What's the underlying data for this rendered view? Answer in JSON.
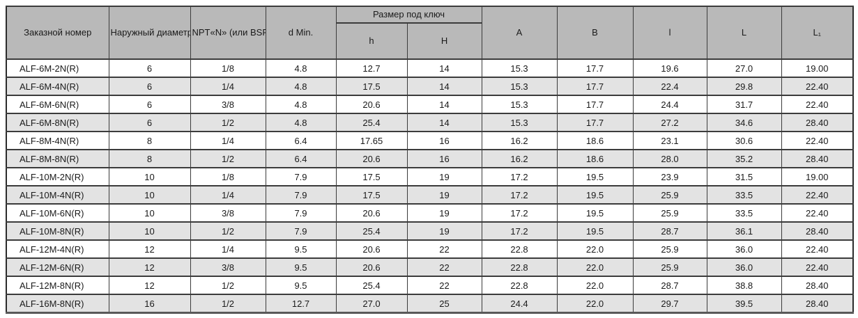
{
  "colors": {
    "header_bg": "#b9b9b9",
    "row_alt_bg": "#e3e3e3",
    "row_bg": "#ffffff",
    "border": "#3b3b3b"
  },
  "table": {
    "headers": {
      "order_number": "Заказной номер",
      "outer_diameter": "Наружный\nдиаметр\nтрубы D",
      "thread": "NPT«N»\n(или\nBSPT«R»)",
      "d_min": "d Min.",
      "wrench_size_group": "Размер под ключ",
      "h_small": "h",
      "h_big": "H",
      "a": "A",
      "b": "B",
      "l_small": "l",
      "l_big": "L",
      "l1": "L₁"
    },
    "column_keys": [
      "order_number",
      "outer_diameter",
      "thread",
      "d_min",
      "h_small",
      "h_big",
      "a",
      "b",
      "l_small",
      "l_big",
      "l1"
    ],
    "rows": [
      [
        "ALF-6M-2N(R)",
        "6",
        "1/8",
        "4.8",
        "12.7",
        "14",
        "15.3",
        "17.7",
        "19.6",
        "27.0",
        "19.00"
      ],
      [
        "ALF-6M-4N(R)",
        "6",
        "1/4",
        "4.8",
        "17.5",
        "14",
        "15.3",
        "17.7",
        "22.4",
        "29.8",
        "22.40"
      ],
      [
        "ALF-6M-6N(R)",
        "6",
        "3/8",
        "4.8",
        "20.6",
        "14",
        "15.3",
        "17.7",
        "24.4",
        "31.7",
        "22.40"
      ],
      [
        "ALF-6M-8N(R)",
        "6",
        "1/2",
        "4.8",
        "25.4",
        "14",
        "15.3",
        "17.7",
        "27.2",
        "34.6",
        "28.40"
      ],
      [
        "ALF-8M-4N(R)",
        "8",
        "1/4",
        "6.4",
        "17.65",
        "16",
        "16.2",
        "18.6",
        "23.1",
        "30.6",
        "22.40"
      ],
      [
        "ALF-8M-8N(R)",
        "8",
        "1/2",
        "6.4",
        "20.6",
        "16",
        "16.2",
        "18.6",
        "28.0",
        "35.2",
        "28.40"
      ],
      [
        "ALF-10M-2N(R)",
        "10",
        "1/8",
        "7.9",
        "17.5",
        "19",
        "17.2",
        "19.5",
        "23.9",
        "31.5",
        "19.00"
      ],
      [
        "ALF-10M-4N(R)",
        "10",
        "1/4",
        "7.9",
        "17.5",
        "19",
        "17.2",
        "19.5",
        "25.9",
        "33.5",
        "22.40"
      ],
      [
        "ALF-10M-6N(R)",
        "10",
        "3/8",
        "7.9",
        "20.6",
        "19",
        "17.2",
        "19.5",
        "25.9",
        "33.5",
        "22.40"
      ],
      [
        "ALF-10M-8N(R)",
        "10",
        "1/2",
        "7.9",
        "25.4",
        "19",
        "17.2",
        "19.5",
        "28.7",
        "36.1",
        "28.40"
      ],
      [
        "ALF-12M-4N(R)",
        "12",
        "1/4",
        "9.5",
        "20.6",
        "22",
        "22.8",
        "22.0",
        "25.9",
        "36.0",
        "22.40"
      ],
      [
        "ALF-12M-6N(R)",
        "12",
        "3/8",
        "9.5",
        "20.6",
        "22",
        "22.8",
        "22.0",
        "25.9",
        "36.0",
        "22.40"
      ],
      [
        "ALF-12M-8N(R)",
        "12",
        "1/2",
        "9.5",
        "25.4",
        "22",
        "22.8",
        "22.0",
        "28.7",
        "38.8",
        "28.40"
      ],
      [
        "ALF-16M-8N(R)",
        "16",
        "1/2",
        "12.7",
        "27.0",
        "25",
        "24.4",
        "22.0",
        "29.7",
        "39.5",
        "28.40"
      ]
    ]
  }
}
